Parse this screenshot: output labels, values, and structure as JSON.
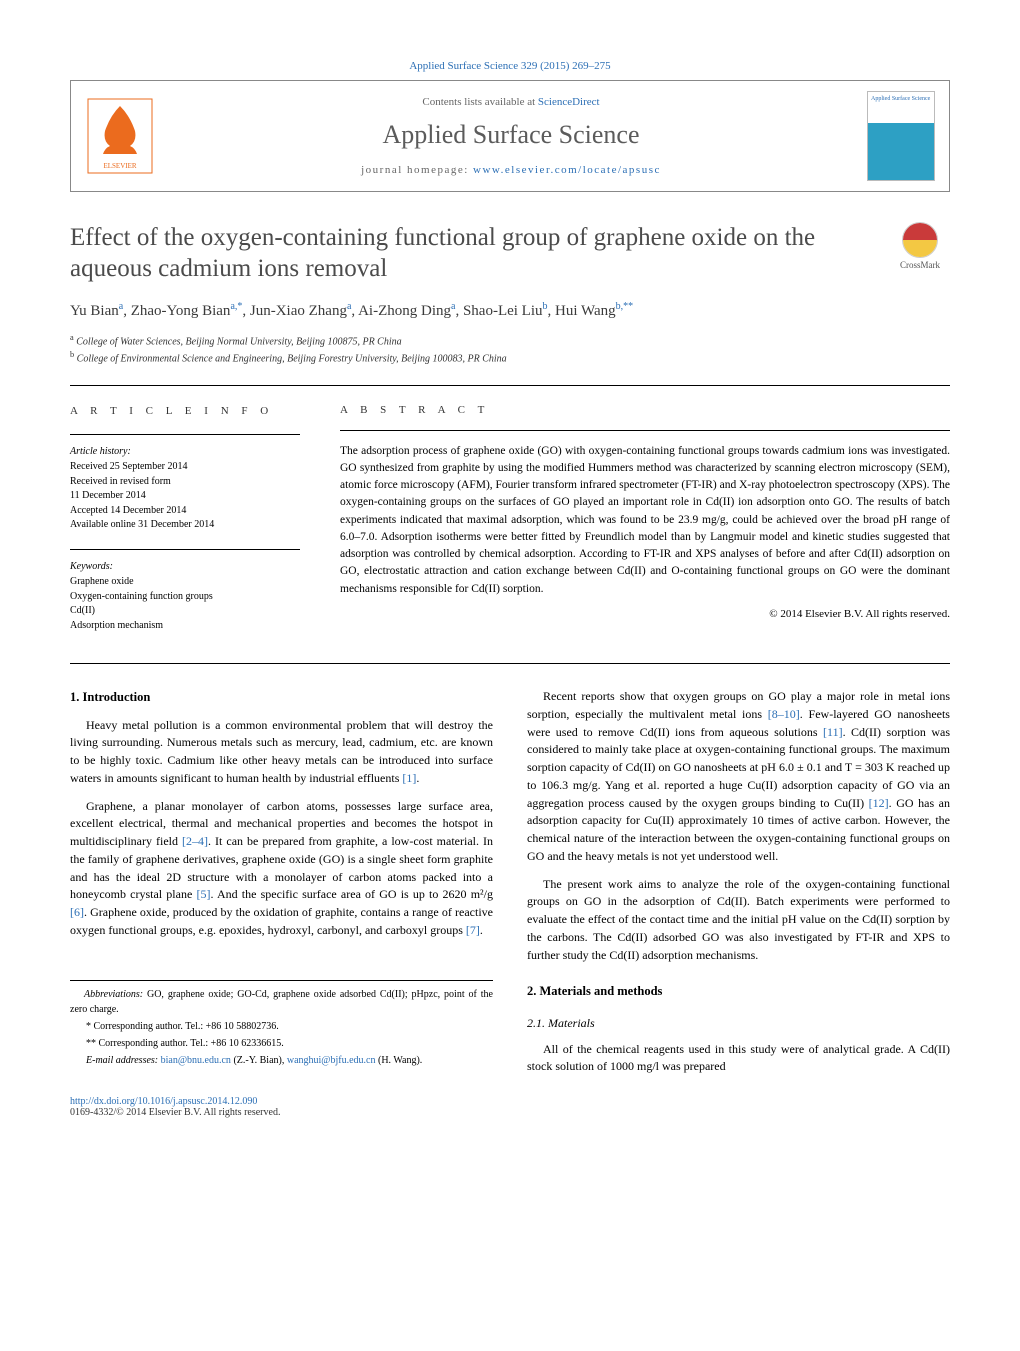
{
  "citation": "Applied Surface Science 329 (2015) 269–275",
  "header": {
    "contents_prefix": "Contents lists available at ",
    "contents_link": "ScienceDirect",
    "journal_name": "Applied Surface Science",
    "homepage_prefix": "journal homepage: ",
    "homepage_link": "www.elsevier.com/locate/apsusc",
    "cover_title": "Applied Surface Science"
  },
  "crossmark": "CrossMark",
  "title": "Effect of the oxygen-containing functional group of graphene oxide on the aqueous cadmium ions removal",
  "authors_html": "Yu Bian<sup>a</sup>, Zhao-Yong Bian<sup>a,*</sup>, Jun-Xiao Zhang<sup>a</sup>, Ai-Zhong Ding<sup>a</sup>, Shao-Lei Liu<sup>b</sup>, Hui Wang<sup>b,**</sup>",
  "affiliations": {
    "a": "College of Water Sciences, Beijing Normal University, Beijing 100875, PR China",
    "b": "College of Environmental Science and Engineering, Beijing Forestry University, Beijing 100083, PR China"
  },
  "article_info": {
    "heading": "A R T I C L E    I N F O",
    "history_head": "Article history:",
    "history": [
      "Received 25 September 2014",
      "Received in revised form",
      "11 December 2014",
      "Accepted 14 December 2014",
      "Available online 31 December 2014"
    ],
    "keywords_head": "Keywords:",
    "keywords": [
      "Graphene oxide",
      "Oxygen-containing function groups",
      "Cd(II)",
      "Adsorption mechanism"
    ]
  },
  "abstract": {
    "heading": "A B S T R A C T",
    "text": "The adsorption process of graphene oxide (GO) with oxygen-containing functional groups towards cadmium ions was investigated. GO synthesized from graphite by using the modified Hummers method was characterized by scanning electron microscopy (SEM), atomic force microscopy (AFM), Fourier transform infrared spectrometer (FT-IR) and X-ray photoelectron spectroscopy (XPS). The oxygen-containing groups on the surfaces of GO played an important role in Cd(II) ion adsorption onto GO. The results of batch experiments indicated that maximal adsorption, which was found to be 23.9 mg/g, could be achieved over the broad pH range of 6.0–7.0. Adsorption isotherms were better fitted by Freundlich model than by Langmuir model and kinetic studies suggested that adsorption was controlled by chemical adsorption. According to FT-IR and XPS analyses of before and after Cd(II) adsorption on GO, electrostatic attraction and cation exchange between Cd(II) and O-containing functional groups on GO were the dominant mechanisms responsible for Cd(II) sorption.",
    "copyright": "© 2014 Elsevier B.V. All rights reserved."
  },
  "sections": {
    "intro_head": "1. Introduction",
    "intro_p1": "Heavy metal pollution is a common environmental problem that will destroy the living surrounding. Numerous metals such as mercury, lead, cadmium, etc. are known to be highly toxic. Cadmium like other heavy metals can be introduced into surface waters in amounts significant to human health by industrial effluents ",
    "intro_p1_ref": "[1]",
    "intro_p1_tail": ".",
    "intro_p2a": "Graphene, a planar monolayer of carbon atoms, possesses large surface area, excellent electrical, thermal and mechanical properties and becomes the hotspot in multidisciplinary field ",
    "intro_p2_ref1": "[2–4]",
    "intro_p2b": ". It can be prepared from graphite, a low-cost material. In the family of graphene derivatives, graphene oxide (GO) is a single sheet form graphite and has the ideal 2D structure with a monolayer of carbon atoms packed into a honeycomb crystal plane ",
    "intro_p2_ref2": "[5]",
    "intro_p2c": ". And the specific surface area of GO is up to 2620 m²/g ",
    "intro_p2_ref3": "[6]",
    "intro_p2d": ". Graphene oxide, produced by the oxidation of graphite, contains a range of reactive oxygen functional groups, e.g. epoxides, hydroxyl, carbonyl, and carboxyl groups ",
    "intro_p2_ref4": "[7]",
    "intro_p2e": ".",
    "col2_p1a": "Recent reports show that oxygen groups on GO play a major role in metal ions sorption, especially the multivalent metal ions ",
    "col2_p1_ref1": "[8–10]",
    "col2_p1b": ". Few-layered GO nanosheets were used to remove Cd(II) ions from aqueous solutions ",
    "col2_p1_ref2": "[11]",
    "col2_p1c": ". Cd(II) sorption was considered to mainly take place at oxygen-containing functional groups. The maximum sorption capacity of Cd(II) on GO nanosheets at pH 6.0 ± 0.1 and T = 303 K reached up to 106.3 mg/g. Yang et al. reported a huge Cu(II) adsorption capacity of GO via an aggregation process caused by the oxygen groups binding to Cu(II) ",
    "col2_p1_ref3": "[12]",
    "col2_p1d": ". GO has an adsorption capacity for Cu(II) approximately 10 times of active carbon. However, the chemical nature of the interaction between the oxygen-containing functional groups on GO and the heavy metals is not yet understood well.",
    "col2_p2": "The present work aims to analyze the role of the oxygen-containing functional groups on GO in the adsorption of Cd(II). Batch experiments were performed to evaluate the effect of the contact time and the initial pH value on the Cd(II) sorption by the carbons. The Cd(II) adsorbed GO was also investigated by FT-IR and XPS to further study the Cd(II) adsorption mechanisms.",
    "mm_head": "2. Materials and methods",
    "mm_sub": "2.1. Materials",
    "mm_p1": "All of the chemical reagents used in this study were of analytical grade. A Cd(II) stock solution of 1000 mg/l was prepared"
  },
  "footnotes": {
    "abbr_label": "Abbreviations:",
    "abbr_text": " GO, graphene oxide; GO-Cd, graphene oxide adsorbed Cd(II); pHpzc, point of the zero charge.",
    "corr1": "* Corresponding author. Tel.: +86 10 58802736.",
    "corr2": "** Corresponding author. Tel.: +86 10 62336615.",
    "email_label": "E-mail addresses: ",
    "email1": "bian@bnu.edu.cn",
    "email1_name": " (Z.-Y. Bian), ",
    "email2": "wanghui@bjfu.edu.cn",
    "email2_name": " (H. Wang)."
  },
  "doi": {
    "link": "http://dx.doi.org/10.1016/j.apsusc.2014.12.090",
    "issn": "0169-4332/© 2014 Elsevier B.V. All rights reserved."
  },
  "colors": {
    "link": "#2c6fb5",
    "elsevier": "#eb6b1e",
    "heading_gray": "#4b4b4b"
  }
}
